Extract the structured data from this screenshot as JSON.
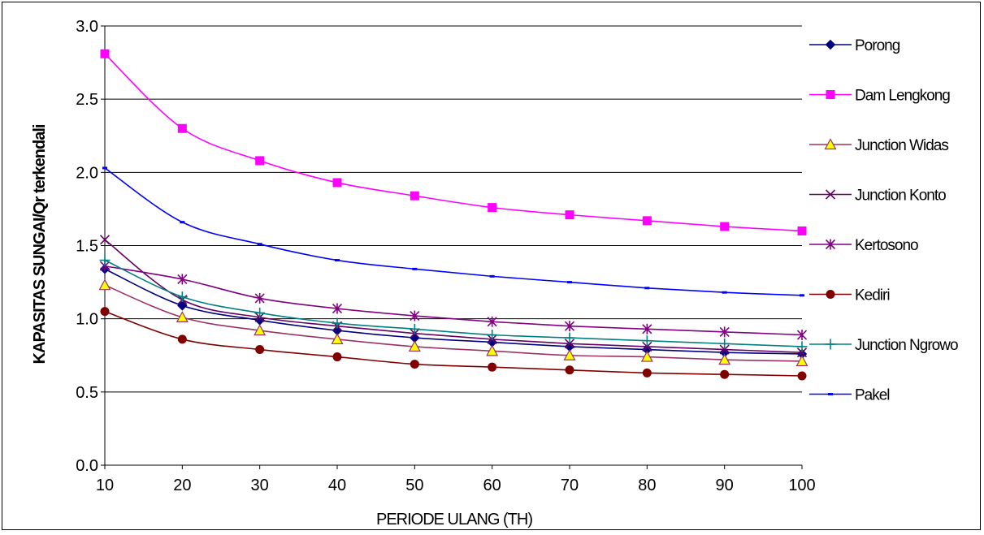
{
  "chart_data": {
    "type": "line",
    "xlabel": "PERIODE ULANG (TH)",
    "ylabel": "KAPASITAS SUNGAI/Qr terkendali",
    "x": [
      10,
      20,
      30,
      40,
      50,
      60,
      70,
      80,
      90,
      100
    ],
    "x_ticks": [
      "10",
      "20",
      "30",
      "40",
      "50",
      "60",
      "70",
      "80",
      "90",
      "100"
    ],
    "y_ticks": [
      "0.0",
      "0.5",
      "1.0",
      "1.5",
      "2.0",
      "2.5",
      "3.0"
    ],
    "xlim": [
      10,
      100
    ],
    "ylim": [
      0,
      3.0
    ],
    "grid": "horizontal",
    "legend_position": "right",
    "series": [
      {
        "name": "Porong",
        "color": "#000080",
        "marker": "diamond",
        "values": [
          1.34,
          1.09,
          0.99,
          0.92,
          0.87,
          0.84,
          0.81,
          0.79,
          0.77,
          0.76
        ]
      },
      {
        "name": "Dam Lengkong",
        "color": "#ff00ff",
        "marker": "square",
        "values": [
          2.81,
          2.3,
          2.08,
          1.93,
          1.84,
          1.76,
          1.71,
          1.67,
          1.63,
          1.6
        ]
      },
      {
        "name": "Junction Widas",
        "color": "#993366",
        "marker": "triangle",
        "values": [
          1.23,
          1.01,
          0.92,
          0.86,
          0.81,
          0.78,
          0.75,
          0.74,
          0.72,
          0.71
        ]
      },
      {
        "name": "Junction Konto",
        "color": "#660066",
        "marker": "x",
        "values": [
          1.54,
          1.13,
          1.01,
          0.95,
          0.9,
          0.86,
          0.83,
          0.81,
          0.79,
          0.77
        ]
      },
      {
        "name": "Kertosono",
        "color": "#800080",
        "marker": "star",
        "values": [
          1.36,
          1.27,
          1.14,
          1.07,
          1.02,
          0.98,
          0.95,
          0.93,
          0.91,
          0.89
        ]
      },
      {
        "name": "Kediri",
        "color": "#800000",
        "marker": "circle",
        "values": [
          1.05,
          0.86,
          0.79,
          0.74,
          0.69,
          0.67,
          0.65,
          0.63,
          0.62,
          0.61
        ]
      },
      {
        "name": "Junction Ngrowo",
        "color": "#008080",
        "marker": "plus",
        "values": [
          1.4,
          1.15,
          1.04,
          0.97,
          0.93,
          0.89,
          0.87,
          0.85,
          0.83,
          0.81
        ]
      },
      {
        "name": "Pakel",
        "color": "#0000ff",
        "marker": "dash",
        "values": [
          2.03,
          1.66,
          1.51,
          1.4,
          1.34,
          1.29,
          1.25,
          1.21,
          1.18,
          1.16
        ]
      }
    ]
  }
}
